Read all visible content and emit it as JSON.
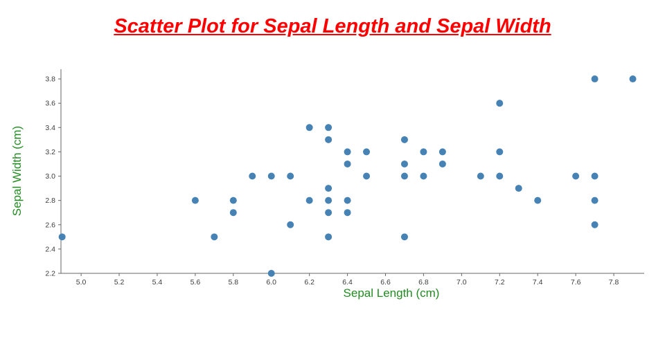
{
  "page": {
    "background": "#ffffff"
  },
  "chart_data": {
    "type": "scatter",
    "title": "Scatter Plot for Sepal Length and Sepal Width",
    "xlabel": "Sepal Length (cm)",
    "ylabel": "Sepal Width (cm)",
    "xlim": [
      4.894,
      7.96
    ],
    "ylim": [
      2.2,
      3.88
    ],
    "x_ticks": [
      5.0,
      5.2,
      5.4,
      5.6,
      5.8,
      6.0,
      6.2,
      6.4,
      6.6,
      6.8,
      7.0,
      7.2,
      7.4,
      7.6,
      7.8
    ],
    "y_ticks": [
      2.2,
      2.4,
      2.6,
      2.8,
      3.0,
      3.2,
      3.4,
      3.6,
      3.8
    ],
    "grid": false,
    "legend": "none",
    "marker_color": "#4682b4",
    "title_color": "#ff0000",
    "axis_label_color": "#228b22",
    "axis_line_color": "#666666",
    "tick_label_color": "#3b3b3b",
    "points": [
      [
        4.9,
        2.5
      ],
      [
        5.6,
        2.8
      ],
      [
        5.7,
        2.5
      ],
      [
        5.8,
        2.7
      ],
      [
        5.8,
        2.8
      ],
      [
        5.9,
        3.0
      ],
      [
        6.0,
        2.2
      ],
      [
        6.0,
        3.0
      ],
      [
        6.1,
        2.6
      ],
      [
        6.1,
        3.0
      ],
      [
        6.2,
        2.8
      ],
      [
        6.2,
        3.4
      ],
      [
        6.3,
        2.5
      ],
      [
        6.3,
        2.7
      ],
      [
        6.3,
        2.8
      ],
      [
        6.3,
        2.9
      ],
      [
        6.3,
        3.3
      ],
      [
        6.3,
        3.4
      ],
      [
        6.4,
        2.7
      ],
      [
        6.4,
        2.8
      ],
      [
        6.4,
        3.1
      ],
      [
        6.4,
        3.2
      ],
      [
        6.5,
        3.0
      ],
      [
        6.5,
        3.2
      ],
      [
        6.7,
        2.5
      ],
      [
        6.7,
        3.0
      ],
      [
        6.7,
        3.1
      ],
      [
        6.7,
        3.3
      ],
      [
        6.8,
        3.0
      ],
      [
        6.8,
        3.2
      ],
      [
        6.9,
        3.1
      ],
      [
        6.9,
        3.2
      ],
      [
        7.1,
        3.0
      ],
      [
        7.2,
        3.0
      ],
      [
        7.2,
        3.2
      ],
      [
        7.2,
        3.6
      ],
      [
        7.3,
        2.9
      ],
      [
        7.4,
        2.8
      ],
      [
        7.6,
        3.0
      ],
      [
        7.7,
        2.6
      ],
      [
        7.7,
        2.8
      ],
      [
        7.7,
        3.0
      ],
      [
        7.7,
        3.8
      ],
      [
        7.9,
        3.8
      ]
    ]
  }
}
